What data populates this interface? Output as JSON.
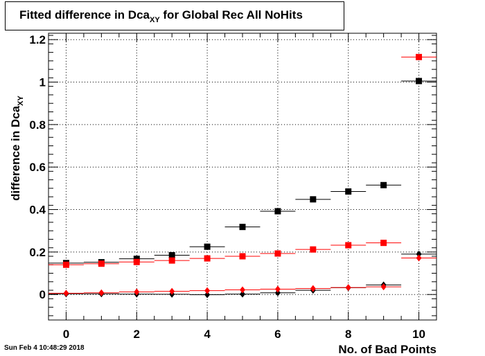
{
  "chart_data": {
    "type": "scatter",
    "title": {
      "main": "Fitted difference in Dca",
      "sub": "XY",
      "rest": " for Global Rec All NoHits"
    },
    "xlabel": "No. of Bad Points",
    "ylabel": {
      "main": "difference in Dca",
      "sub": "XY"
    },
    "xlim": [
      -0.5,
      10.5
    ],
    "ylim": [
      -0.12,
      1.23
    ],
    "xticks": [
      0,
      2,
      4,
      6,
      8,
      10
    ],
    "yticks": [
      0,
      0.2,
      0.4,
      0.6,
      0.8,
      1,
      1.2
    ],
    "yticklabels": [
      "0",
      "0.2",
      "0.4",
      "0.6",
      "0.8",
      "1",
      "1.2"
    ],
    "grid": true,
    "series": [
      {
        "marker": "square",
        "color": "#000000",
        "x": [
          0,
          1,
          2,
          3,
          4,
          5,
          6,
          7,
          8,
          9,
          10
        ],
        "y": [
          0.148,
          0.152,
          0.168,
          0.185,
          0.225,
          0.318,
          0.392,
          0.448,
          0.485,
          0.515,
          1.005
        ]
      },
      {
        "marker": "square",
        "color": "#ff0000",
        "x": [
          0,
          1,
          2,
          3,
          4,
          5,
          6,
          7,
          8,
          9,
          10
        ],
        "y": [
          0.14,
          0.145,
          0.153,
          0.16,
          0.17,
          0.18,
          0.193,
          0.212,
          0.232,
          0.243,
          1.118
        ]
      },
      {
        "marker": "diamond",
        "color": "#000000",
        "x": [
          0,
          1,
          2,
          3,
          4,
          5,
          6,
          7,
          8,
          9,
          10
        ],
        "y": [
          0.003,
          0.003,
          0.002,
          0.001,
          -0.001,
          0.002,
          0.008,
          0.02,
          0.032,
          0.045,
          0.19
        ]
      },
      {
        "marker": "diamond",
        "color": "#ff0000",
        "x": [
          0,
          1,
          2,
          3,
          4,
          5,
          6,
          7,
          8,
          9,
          10
        ],
        "y": [
          0.006,
          0.008,
          0.012,
          0.015,
          0.018,
          0.022,
          0.025,
          0.028,
          0.033,
          0.036,
          0.172
        ]
      }
    ]
  },
  "timestamp": "Sun Feb  4 10:48:29 2018"
}
